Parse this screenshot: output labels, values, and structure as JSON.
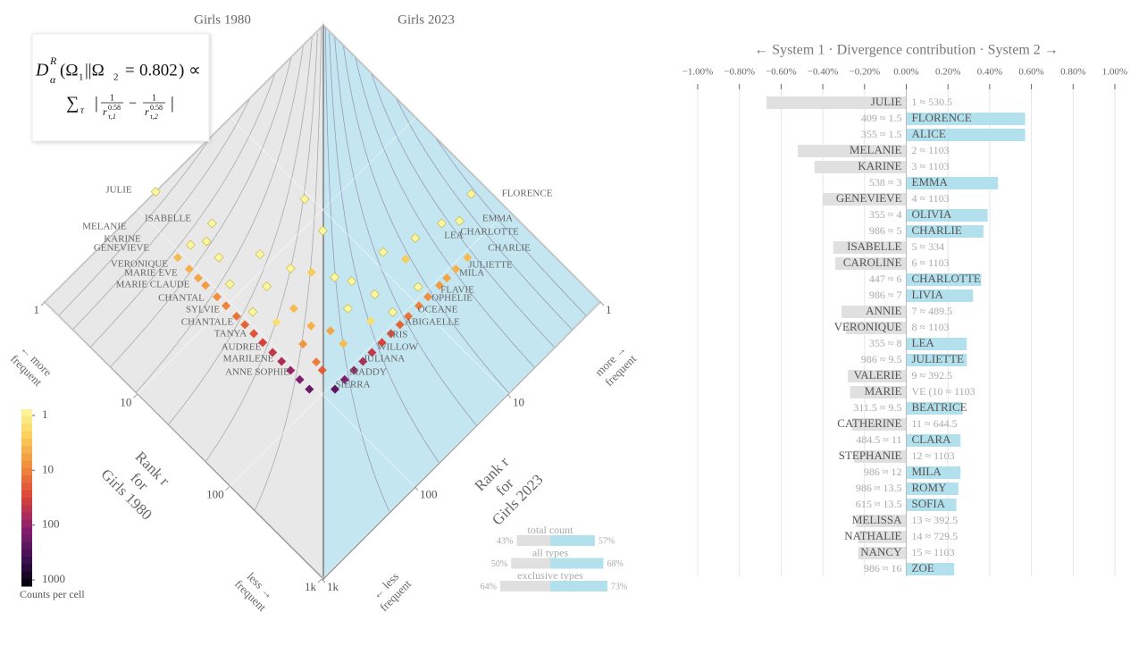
{
  "chart_data": [
    {
      "type": "diamond",
      "title_left": "Girls 1980",
      "title_right": "Girls 2023",
      "formula_line1": [
        "D",
        "R",
        "α",
        "(Ω",
        "1",
        "||Ω",
        "2",
        "=",
        0.802,
        ") ∝"
      ],
      "formula_line2": [
        "∑",
        "τ",
        "|",
        "1",
        "r",
        0.58,
        "τ,1",
        "−",
        "1",
        "r",
        0.58,
        "τ,2",
        "|"
      ],
      "log_scale": true,
      "rank_lim": [
        1,
        1000
      ],
      "ticks": [
        1,
        10,
        100,
        {
          "value": 1000,
          "label": "1k"
        }
      ],
      "grid": true,
      "left_color": "#e8e8e8",
      "right_color": "#c3e6f0",
      "left_axis_label": [
        "Rank r",
        "for",
        "Girls 1980"
      ],
      "right_axis_label": [
        "Rank r",
        "for",
        "Girls 2023"
      ],
      "corner_labels": {
        "left_more": [
          "← more",
          "frequent"
        ],
        "right_more": [
          "more →",
          "frequent"
        ],
        "left_less": [
          "less →",
          "frequent"
        ],
        "right_less": [
          "← less",
          "frequent"
        ]
      },
      "names_left": [
        "JULIE",
        "ISABELLE",
        "MELANIE",
        "KARINE",
        "GENEVIEVE",
        "VERONIQUE",
        "MARIE EVE",
        "MARIE CLAUDE",
        "CHANTAL",
        "SYLVIE",
        "CHANTALE",
        "TANYA",
        "AUDREE",
        "MARILENE",
        "ANNE SOPHIE"
      ],
      "names_right": [
        "FLORENCE",
        "EMMA",
        "CHARLOTTE",
        "LEA",
        "CHARLIE",
        "JULIETTE",
        "MILA",
        "FLAVIE",
        "OPHELIE",
        "OCEANE",
        "ABIGAELLE",
        "IRIS",
        "WILLOW",
        "JULIANA",
        "MADDY",
        "SIERRA"
      ],
      "cells": [
        [
          1,
          64,
          1
        ],
        [
          3,
          47,
          1
        ],
        [
          7,
          11,
          1
        ],
        [
          52,
          1.3,
          1
        ],
        [
          52,
          2.7,
          1
        ],
        [
          63,
          2.1,
          1
        ],
        [
          45,
          4.5,
          1
        ],
        [
          3,
          80,
          1
        ],
        [
          3.5,
          63,
          1
        ],
        [
          13,
          13,
          1
        ],
        [
          8,
          38,
          1
        ],
        [
          5,
          66,
          1
        ],
        [
          36,
          8,
          1
        ],
        [
          52,
          6.6,
          3
        ],
        [
          19,
          25,
          3
        ],
        [
          27,
          20,
          1
        ],
        [
          35,
          17,
          1
        ],
        [
          14,
          31,
          1
        ],
        [
          13,
          52,
          1
        ],
        [
          8,
          80,
          1
        ],
        [
          55,
          15,
          1
        ],
        [
          86,
          8,
          1
        ],
        [
          24,
          49,
          4
        ],
        [
          47,
          25,
          1
        ],
        [
          37,
          49,
          5
        ],
        [
          50,
          41,
          6
        ],
        [
          42,
          68,
          8
        ],
        [
          69,
          41,
          4
        ],
        [
          62,
          72,
          12
        ],
        [
          74,
          74,
          20
        ],
        [
          23,
          72,
          2
        ],
        [
          73,
          22,
          2
        ],
        [
          15,
          85,
          1
        ],
        [
          86,
          15,
          1
        ],
        [
          3,
          110,
          4
        ],
        [
          4,
          110,
          5
        ],
        [
          5,
          110,
          6
        ],
        [
          6,
          110,
          7
        ],
        [
          8,
          110,
          9
        ],
        [
          10,
          110,
          11
        ],
        [
          13,
          110,
          14
        ],
        [
          16,
          110,
          18
        ],
        [
          20,
          110,
          24
        ],
        [
          25,
          110,
          32
        ],
        [
          32,
          110,
          45
        ],
        [
          40,
          110,
          60
        ],
        [
          50,
          110,
          85
        ],
        [
          63,
          110,
          120
        ],
        [
          80,
          110,
          180
        ],
        [
          110,
          3,
          4
        ],
        [
          110,
          4,
          5
        ],
        [
          110,
          5,
          6
        ],
        [
          110,
          6,
          7
        ],
        [
          110,
          8,
          9
        ],
        [
          110,
          10,
          11
        ],
        [
          110,
          13,
          14
        ],
        [
          110,
          16,
          18
        ],
        [
          110,
          20,
          24
        ],
        [
          110,
          25,
          32
        ],
        [
          110,
          32,
          45
        ],
        [
          110,
          40,
          60
        ],
        [
          110,
          50,
          85
        ],
        [
          110,
          63,
          120
        ],
        [
          110,
          80,
          200
        ]
      ],
      "colorbar": {
        "label": "Counts per cell",
        "ticks": [
          1,
          10,
          100,
          1000
        ]
      },
      "balance": [
        {
          "label": "total count",
          "left": 43,
          "right": 57,
          "left_label": "43%",
          "right_label": "57%"
        },
        {
          "label": "all types",
          "left": 50,
          "right": 68,
          "left_label": "50%",
          "right_label": "68%"
        },
        {
          "label": "exclusive types",
          "left": 64,
          "right": 73,
          "left_label": "64%",
          "right_label": "73%"
        }
      ],
      "balance_colors": {
        "left": "#e0e0e0",
        "right": "#b2e0ec"
      }
    },
    {
      "type": "bar",
      "orientation": "horizontal",
      "title": "← System 1 · Divergence contribution · System 2 →",
      "xlim": [
        -1,
        1
      ],
      "xticks": [
        {
          "value": -1,
          "label": "−1.00%"
        },
        {
          "value": -0.8,
          "label": "−0.80%"
        },
        {
          "value": -0.6,
          "label": "−0.60%"
        },
        {
          "value": -0.4,
          "label": "−0.40%"
        },
        {
          "value": -0.2,
          "label": "−0.20%"
        },
        {
          "value": 0,
          "label": "0.00%"
        },
        {
          "value": 0.2,
          "label": "0.20%"
        },
        {
          "value": 0.4,
          "label": "0.40%"
        },
        {
          "value": 0.6,
          "label": "0.60%"
        },
        {
          "value": 0.8,
          "label": "0.80%"
        },
        {
          "value": 1,
          "label": "1.00%"
        }
      ],
      "grid": true,
      "negative_color": "#e0e0e0",
      "positive_color": "#b2e0ec",
      "categories": [
        "JULIE",
        "FLORENCE",
        "ALICE",
        "MELANIE",
        "KARINE",
        "EMMA",
        "GENEVIEVE",
        "OLIVIA",
        "CHARLIE",
        "ISABELLE",
        "CAROLINE",
        "CHARLOTTE",
        "LIVIA",
        "ANNIE",
        "VERONIQUE",
        "LEA",
        "JULIETTE",
        "VALERIE",
        "MARIE",
        "BEATRICE",
        "CATHERINE",
        "CLARA",
        "STEPHANIE",
        "MILA",
        "ROMY",
        "SOFIA",
        "MELISSA",
        "NATHALIE",
        "NANCY",
        "ZOE"
      ],
      "rank_labels": [
        "1 ≈ 530.5",
        "409 ≈ 1.5",
        "355 ≈ 1.5",
        "2 ≈ 1103",
        "3 ≈ 1103",
        "538 ≈ 3",
        "4 ≈ 1103",
        "355 ≈ 4",
        "986 ≈ 5",
        "5 ≈ 334",
        "6 ≈ 1103",
        "447 ≈ 6",
        "986 ≈ 7",
        "7 ≈ 489.5",
        "8 ≈ 1103",
        "355 ≈ 8",
        "986 ≈ 9.5",
        "9 ≈ 392.5",
        "VE (10 ≈ 1103",
        "311.5 ≈ 9.5",
        "11 ≈ 644.5",
        "484.5 ≈ 11",
        "12 ≈ 1103",
        "986 ≈ 12",
        "986 ≈ 13.5",
        "615 ≈ 13.5",
        "13 ≈ 392.5",
        "14 ≈ 729.5",
        "15 ≈ 1103",
        "986 ≈ 16"
      ],
      "values": [
        -0.67,
        0.57,
        0.57,
        -0.52,
        -0.44,
        0.44,
        -0.4,
        0.39,
        0.37,
        -0.35,
        -0.34,
        0.36,
        0.32,
        -0.31,
        -0.29,
        0.29,
        0.29,
        -0.28,
        -0.27,
        0.27,
        -0.26,
        0.26,
        -0.25,
        0.26,
        0.25,
        0.24,
        -0.24,
        -0.23,
        -0.23,
        0.23
      ]
    }
  ]
}
